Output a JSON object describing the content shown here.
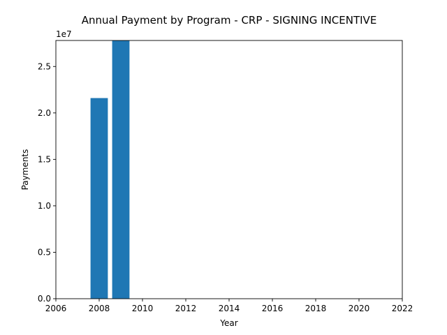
{
  "chart_data": {
    "type": "bar",
    "title": "Annual Payment by Program - CRP - SIGNING INCENTIVE",
    "xlabel": "Year",
    "ylabel": "Payments",
    "y_offset_label": "1e7",
    "x": [
      2008,
      2009
    ],
    "values": [
      21600000,
      27800000
    ],
    "xlim": [
      2006,
      2022
    ],
    "ylim": [
      0,
      27800000
    ],
    "xticks": [
      2006,
      2008,
      2010,
      2012,
      2014,
      2016,
      2018,
      2020,
      2022
    ],
    "yticks": [
      0,
      5000000,
      10000000,
      15000000,
      20000000,
      25000000
    ],
    "ytick_labels": [
      "0.0",
      "0.5",
      "1.0",
      "1.5",
      "2.0",
      "2.5"
    ],
    "bar_color": "#1f77b4",
    "grid": false,
    "legend": "none"
  }
}
